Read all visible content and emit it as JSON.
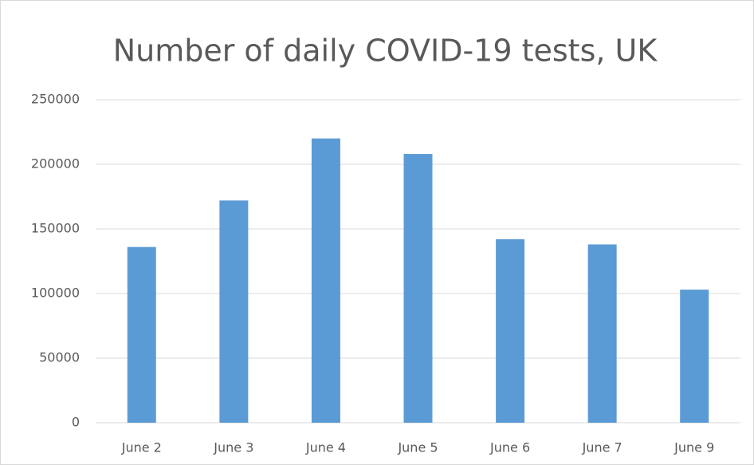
{
  "chart_data": {
    "type": "bar",
    "title": "Number of daily COVID-19 tests, UK",
    "categories": [
      "June 2",
      "June 3",
      "June 4",
      "June 5",
      "June 6",
      "June 7",
      "June 9"
    ],
    "values": [
      136000,
      172000,
      220000,
      208000,
      142000,
      138000,
      103000
    ],
    "color": "#5b9bd5",
    "ylim": [
      0,
      250000
    ],
    "yticks": [
      0,
      50000,
      100000,
      150000,
      200000,
      250000
    ],
    "grid": true
  }
}
